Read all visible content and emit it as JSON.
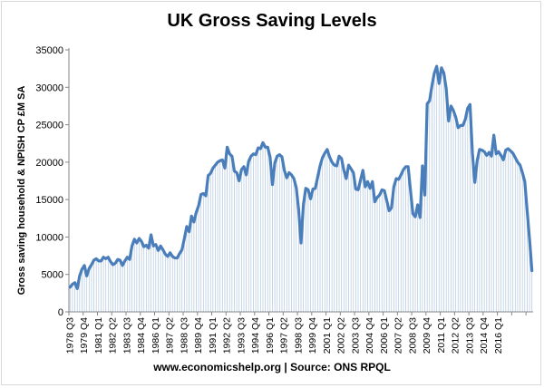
{
  "chart_data": {
    "type": "line",
    "title": "UK Gross Saving Levels",
    "ylabel": "Gross saving household & NPISH CP £M SA",
    "xlabel": "",
    "caption": "www.economicshelp.org | Source: ONS RPQL",
    "ylim": [
      0,
      35000
    ],
    "yticks": [
      0,
      5000,
      10000,
      15000,
      20000,
      25000,
      30000,
      35000
    ],
    "ytick_labels": [
      "0",
      "5000",
      "10000",
      "15000",
      "20000",
      "25000",
      "30000",
      "35000"
    ],
    "xtick_labels": [
      "1978 Q3",
      "1979 Q4",
      "1981 Q1",
      "1982 Q2",
      "1983 Q3",
      "1984 Q4",
      "1986 Q1",
      "1987 Q2",
      "1988 Q3",
      "1989 Q4",
      "1991 Q1",
      "1992 Q2",
      "1993 Q3",
      "1994 Q4",
      "1996 Q1",
      "1997 Q2",
      "1998 Q3",
      "1999 Q4",
      "2001 Q1",
      "2002 Q2",
      "2003 Q3",
      "2004 Q4",
      "2006 Q1",
      "2007 Q2",
      "2008 Q3",
      "2009 Q4",
      "2011 Q1",
      "2012 Q2",
      "2013 Q3",
      "2014 Q4",
      "2016 Q1"
    ],
    "grid": "vertical lines at every data point",
    "legend": "none",
    "line_color": "#4a7ebb",
    "grid_color": "#b8cce4",
    "series": [
      {
        "name": "",
        "x_start": "1978 Q3",
        "frequency": "quarterly",
        "values": [
          3300,
          3700,
          3900,
          3100,
          4800,
          5700,
          6200,
          4800,
          5800,
          6300,
          6900,
          7100,
          6800,
          6800,
          7300,
          7100,
          7300,
          6700,
          6300,
          6500,
          7000,
          6900,
          6200,
          6800,
          7300,
          7000,
          8800,
          9700,
          9200,
          9800,
          9400,
          8700,
          8900,
          8500,
          10300,
          8800,
          9000,
          8200,
          8800,
          8300,
          7700,
          7400,
          7900,
          7400,
          7200,
          7200,
          7800,
          8300,
          9800,
          11400,
          10700,
          12800,
          12000,
          13300,
          14200,
          15700,
          15800,
          15500,
          18200,
          18500,
          19200,
          19600,
          20000,
          20200,
          20300,
          19200,
          22000,
          21100,
          20800,
          18800,
          18600,
          17500,
          19000,
          19400,
          18300,
          20100,
          20800,
          21100,
          21000,
          21900,
          21800,
          22600,
          22000,
          22000,
          20700,
          17000,
          19900,
          20800,
          21000,
          20700,
          18900,
          17900,
          18600,
          18300,
          17800,
          16600,
          13700,
          9200,
          14300,
          16500,
          16300,
          15100,
          16400,
          16500,
          18000,
          19500,
          20600,
          21200,
          21700,
          20700,
          20000,
          19600,
          19500,
          20800,
          20500,
          18900,
          17800,
          19600,
          19100,
          18600,
          16400,
          16300,
          17600,
          18900,
          16700,
          17400,
          16500,
          17400,
          14700,
          15300,
          15600,
          16300,
          16200,
          14900,
          13500,
          13900,
          16700,
          17800,
          17700,
          18300,
          19000,
          19400,
          19400,
          16200,
          13100,
          12700,
          14300,
          12600,
          19500,
          15600,
          27800,
          28200,
          30200,
          31900,
          32800,
          30500,
          32600,
          31900,
          29800,
          25500,
          27500,
          26900,
          26000,
          24600,
          24900,
          24900,
          25700,
          27200,
          27700,
          21200,
          17300,
          20200,
          21700,
          21600,
          21400,
          20900,
          21300,
          20800,
          23600,
          21100,
          21400,
          20900,
          20300,
          21600,
          21800,
          21500,
          21200,
          20600,
          20000,
          19600,
          18600,
          17400,
          13500,
          9700,
          5500
        ]
      }
    ]
  }
}
